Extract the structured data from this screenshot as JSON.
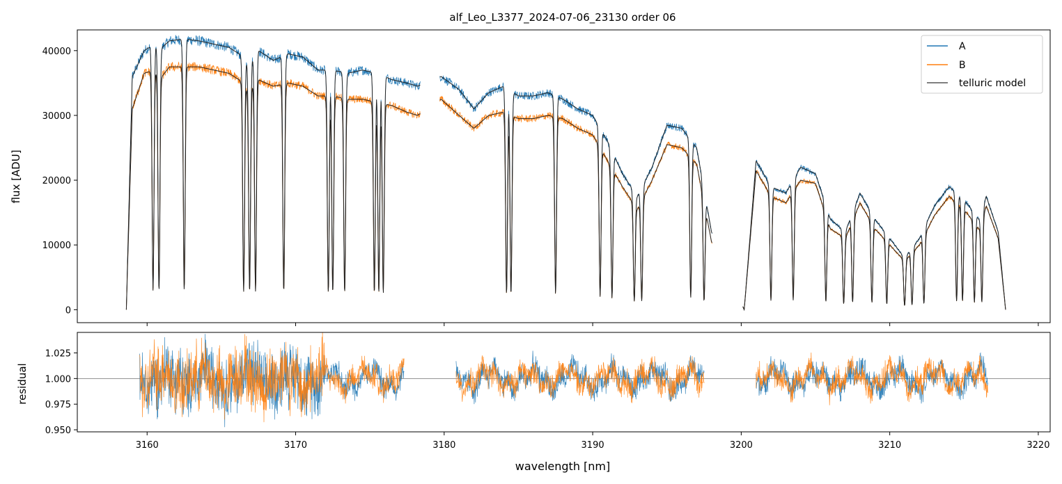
{
  "title": "alf_Leo_L3377_2024-07-06_23130  order 06",
  "colors": {
    "A": "#1f77b4",
    "B": "#ff7f0e",
    "model": "#222222"
  },
  "chart_data": [
    {
      "type": "line",
      "title": "alf_Leo_L3377_2024-07-06_23130  order 06",
      "xlabel": "",
      "ylabel": "flux [ADU]",
      "xlim": [
        3155.3,
        3220.8
      ],
      "ylim": [
        -2000,
        43200
      ],
      "yticks": [
        0,
        10000,
        20000,
        30000,
        40000
      ],
      "ytick_labels": [
        "0",
        "10000",
        "20000",
        "30000",
        "40000"
      ],
      "legend": "top-right",
      "grid": false,
      "series": [
        {
          "name": "A",
          "note_shape": "envelope x nm -> flux",
          "x": [
            3158.6,
            3159.0,
            3159.8,
            3160.5,
            3161.0,
            3161.5,
            3162.5,
            3163.5,
            3164.5,
            3165.5,
            3166.2,
            3166.8,
            3167.5,
            3168.5,
            3169.5,
            3170.5,
            3171.5,
            3172.5,
            3173.5,
            3174.5,
            3175.5,
            3176.5,
            3177.5,
            3178.2,
            3179.8,
            3181.0,
            3182.0,
            3183.0,
            3184.0,
            3185.0,
            3186.0,
            3187.0,
            3188.0,
            3189.0,
            3190.0,
            3191.0,
            3192.0,
            3193.0,
            3194.0,
            3195.0,
            3196.0,
            3197.0,
            3198.0,
            3200.2,
            3201.0,
            3202.0,
            3203.0,
            3204.0,
            3205.0,
            3206.0,
            3207.0,
            3208.0,
            3209.0,
            3210.0,
            3211.0,
            3212.0,
            3213.0,
            3214.0,
            3215.0,
            3216.0,
            3216.5,
            3217.3,
            3217.8
          ],
          "y": [
            0,
            36000,
            40000,
            41000,
            40500,
            41500,
            41800,
            41500,
            41000,
            40500,
            39500,
            38000,
            40000,
            38500,
            39500,
            39000,
            37000,
            37000,
            36500,
            37000,
            36500,
            35500,
            35000,
            34500,
            36000,
            34000,
            31000,
            33500,
            34500,
            33000,
            33000,
            33500,
            32500,
            31000,
            30000,
            26000,
            21000,
            17500,
            22000,
            28500,
            28000,
            25000,
            12000,
            0,
            23000,
            19000,
            18000,
            22000,
            21000,
            14000,
            12000,
            18000,
            14000,
            11000,
            8000,
            11000,
            16000,
            19000,
            17000,
            14000,
            17500,
            12000,
            0
          ]
        },
        {
          "name": "B",
          "note_shape": "envelope x nm -> flux",
          "x": [
            3158.6,
            3159.0,
            3159.8,
            3160.5,
            3161.0,
            3161.5,
            3162.5,
            3163.5,
            3164.5,
            3165.5,
            3166.2,
            3166.8,
            3167.5,
            3168.5,
            3169.5,
            3170.5,
            3171.5,
            3172.5,
            3173.5,
            3174.5,
            3175.5,
            3176.5,
            3177.5,
            3178.2,
            3179.8,
            3181.0,
            3182.0,
            3183.0,
            3184.0,
            3185.0,
            3186.0,
            3187.0,
            3188.0,
            3189.0,
            3190.0,
            3191.0,
            3192.0,
            3193.0,
            3194.0,
            3195.0,
            3196.0,
            3197.0,
            3198.0,
            3200.2,
            3201.0,
            3202.0,
            3203.0,
            3204.0,
            3205.0,
            3206.0,
            3207.0,
            3208.0,
            3209.0,
            3210.0,
            3211.0,
            3212.0,
            3213.0,
            3214.0,
            3215.0,
            3216.0,
            3216.5,
            3217.3,
            3217.8
          ],
          "y": [
            0,
            31000,
            36500,
            37000,
            36000,
            37500,
            37500,
            37500,
            37000,
            36500,
            35500,
            34000,
            35500,
            34500,
            35000,
            34500,
            33000,
            33000,
            32500,
            32500,
            32000,
            31500,
            30500,
            30000,
            32500,
            30000,
            28000,
            30000,
            30500,
            29500,
            29500,
            30000,
            29500,
            28000,
            27000,
            23000,
            19000,
            15500,
            20000,
            25500,
            25000,
            22500,
            10500,
            0,
            21500,
            17500,
            16500,
            20000,
            19500,
            12500,
            11000,
            16500,
            12500,
            10000,
            7500,
            10000,
            14500,
            17500,
            15500,
            12500,
            16000,
            11000,
            0
          ]
        }
      ],
      "absorption_lines_nm": [
        3160.4,
        3160.8,
        3162.5,
        3166.5,
        3166.9,
        3167.3,
        3169.2,
        3172.2,
        3172.5,
        3173.3,
        3175.3,
        3175.6,
        3175.9,
        3184.2,
        3184.5,
        3187.5,
        3190.5,
        3191.3,
        3192.8,
        3193.3,
        3196.6,
        3197.5,
        3202.0,
        3203.5,
        3205.7,
        3206.9,
        3207.5,
        3208.8,
        3209.8,
        3211.0,
        3211.5,
        3212.3,
        3214.5,
        3214.9,
        3215.7,
        3216.2
      ]
    },
    {
      "type": "line",
      "title": "",
      "xlabel": "wavelength [nm]",
      "ylabel": "residual",
      "xlim": [
        3155.3,
        3220.8
      ],
      "ylim": [
        0.948,
        1.045
      ],
      "yticks": [
        0.95,
        0.975,
        1.0,
        1.025
      ],
      "ytick_labels": [
        "0.950",
        "0.975",
        "1.000",
        "1.025"
      ],
      "xticks": [
        3160,
        3170,
        3180,
        3190,
        3200,
        3210,
        3220
      ],
      "xtick_labels": [
        "3160",
        "3170",
        "3180",
        "3190",
        "3200",
        "3210",
        "3220"
      ],
      "reference_line": 1.0,
      "segments": [
        [
          3159.5,
          3177.3
        ],
        [
          3180.8,
          3197.5
        ],
        [
          3201.0,
          3216.6
        ]
      ],
      "series": [
        {
          "name": "A"
        },
        {
          "name": "B"
        }
      ]
    }
  ],
  "legend": [
    {
      "label": "A",
      "color": "#1f77b4"
    },
    {
      "label": "B",
      "color": "#ff7f0e"
    },
    {
      "label": "telluric model",
      "color": "#555555"
    }
  ]
}
